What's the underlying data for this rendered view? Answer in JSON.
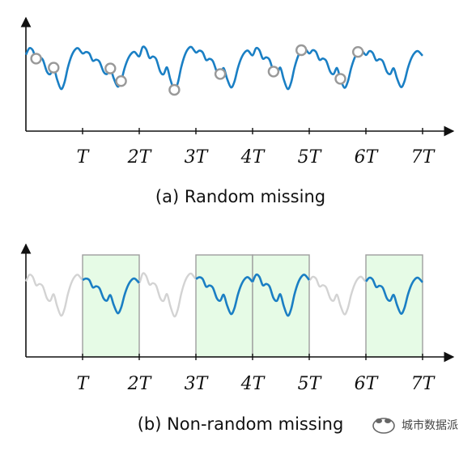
{
  "panel_a": {
    "caption": "(a) Random missing",
    "ticks": [
      "T",
      "2T",
      "3T",
      "4T",
      "5T",
      "6T",
      "7T"
    ],
    "missing_points_count": 12
  },
  "panel_b": {
    "caption": "(b) Non-random missing",
    "ticks": [
      "T",
      "2T",
      "3T",
      "4T",
      "5T",
      "6T",
      "7T"
    ],
    "observed_periods": [
      "T-2T",
      "3T-4T",
      "4T-5T",
      "6T-7T"
    ]
  },
  "watermark": {
    "text": "城市数据派"
  },
  "colors": {
    "series": "#1a7fc4",
    "missing_series": "#d3d3d3",
    "highlight_fill": "#e6fbe6",
    "highlight_stroke": "#9e9e9e",
    "marker_stroke": "#999999"
  }
}
